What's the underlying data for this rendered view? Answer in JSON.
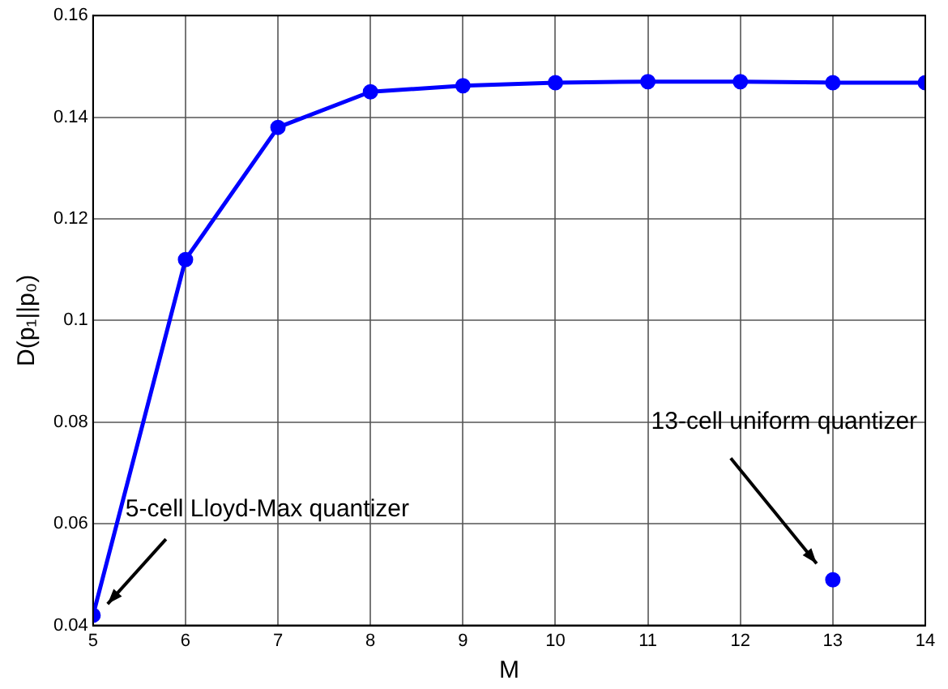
{
  "chart_data": {
    "type": "line",
    "xlabel": "M",
    "ylabel": "D(p₁||p₀)",
    "x": [
      5,
      6,
      7,
      8,
      9,
      10,
      11,
      12,
      13,
      14
    ],
    "series": [
      {
        "color": "#0000ff",
        "values": [
          0.042,
          0.112,
          0.138,
          0.145,
          0.1462,
          0.1468,
          0.147,
          0.147,
          0.1468,
          0.1468
        ]
      },
      {
        "type": "scatter",
        "color": "#0000ff",
        "x": [
          13
        ],
        "values": [
          0.049
        ]
      }
    ],
    "xlim": [
      5,
      14
    ],
    "xticks": [
      5,
      6,
      7,
      8,
      9,
      10,
      11,
      12,
      13,
      14
    ],
    "ylim": [
      0.04,
      0.16
    ],
    "yticks": [
      0.04,
      0.06,
      0.08,
      0.1,
      0.12,
      0.14,
      0.16
    ],
    "grid": true,
    "marker": "circle",
    "line_style": "solid",
    "annotations": [
      "5-cell Lloyd-Max quantizer",
      "13-cell uniform quantizer"
    ]
  }
}
